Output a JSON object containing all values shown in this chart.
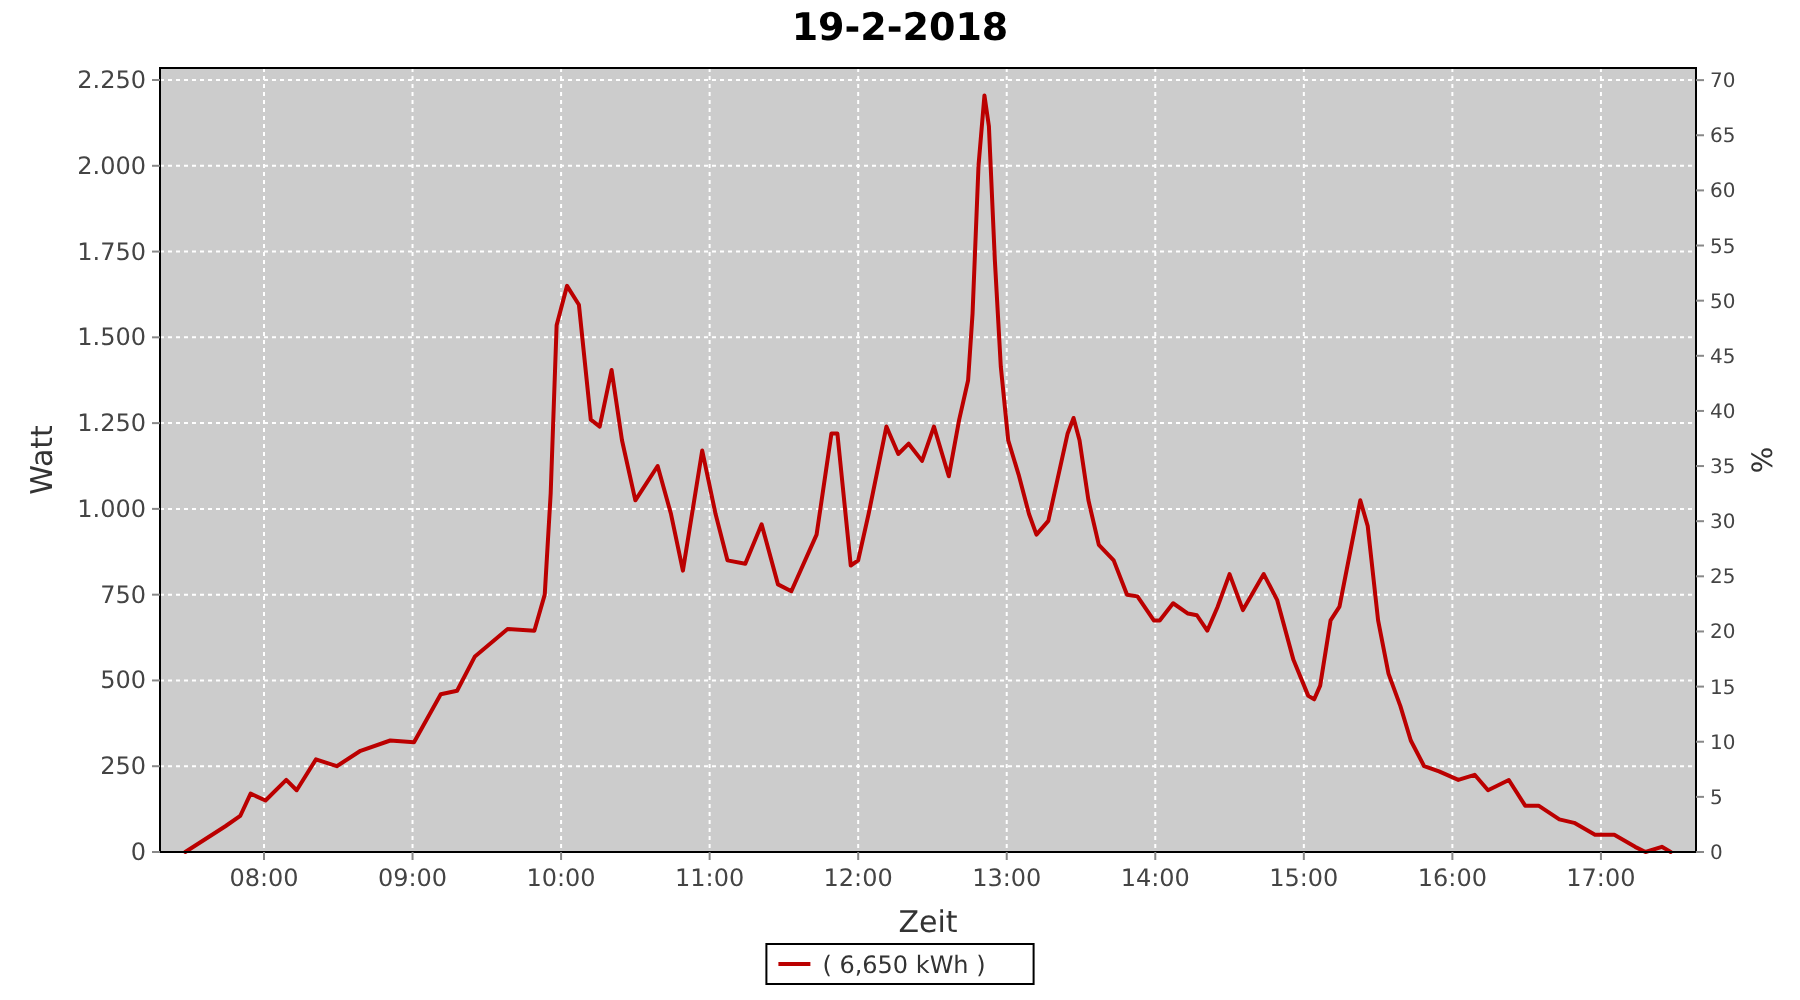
{
  "chart_data": {
    "type": "line",
    "title": "19-2-2018",
    "xlabel": "Zeit",
    "ylabel": "Watt",
    "y2label": "%",
    "x": [
      7.47,
      7.74,
      7.84,
      7.91,
      8.01,
      8.15,
      8.22,
      8.35,
      8.49,
      8.65,
      8.85,
      9.01,
      9.19,
      9.3,
      9.42,
      9.64,
      9.82,
      9.89,
      9.93,
      9.97,
      10.04,
      10.12,
      10.2,
      10.26,
      10.34,
      10.41,
      10.5,
      10.65,
      10.74,
      10.82,
      10.95,
      11.04,
      11.12,
      11.24,
      11.35,
      11.46,
      11.55,
      11.72,
      11.82,
      11.86,
      11.95,
      12.0,
      12.07,
      12.19,
      12.27,
      12.34,
      12.43,
      12.51,
      12.61,
      12.68,
      12.74,
      12.77,
      12.81,
      12.85,
      12.88,
      12.92,
      12.96,
      13.01,
      13.08,
      13.15,
      13.2,
      13.28,
      13.41,
      13.45,
      13.49,
      13.55,
      13.62,
      13.72,
      13.81,
      13.88,
      13.99,
      14.03,
      14.12,
      14.22,
      14.28,
      14.35,
      14.42,
      14.5,
      14.59,
      14.73,
      14.82,
      14.93,
      15.03,
      15.07,
      15.11,
      15.18,
      15.24,
      15.31,
      15.38,
      15.43,
      15.5,
      15.57,
      15.65,
      15.72,
      15.81,
      15.91,
      16.04,
      16.15,
      16.24,
      16.38,
      16.49,
      16.58,
      16.72,
      16.82,
      16.96,
      17.09,
      17.23,
      17.3,
      17.41,
      17.47
    ],
    "series": [
      {
        "name": "( 6,650 kWh )",
        "color": "#bb0000",
        "values": [
          0,
          75,
          105,
          170,
          150,
          210,
          180,
          270,
          250,
          295,
          325,
          320,
          460,
          470,
          570,
          650,
          645,
          750,
          1045,
          1535,
          1650,
          1595,
          1260,
          1240,
          1405,
          1200,
          1025,
          1125,
          985,
          820,
          1170,
          985,
          850,
          840,
          955,
          780,
          760,
          925,
          1220,
          1220,
          835,
          850,
          985,
          1240,
          1160,
          1190,
          1140,
          1240,
          1095,
          1260,
          1375,
          1570,
          2000,
          2205,
          2115,
          1725,
          1415,
          1200,
          1100,
          985,
          925,
          965,
          1220,
          1265,
          1200,
          1025,
          895,
          850,
          750,
          745,
          675,
          675,
          725,
          695,
          690,
          645,
          715,
          810,
          705,
          810,
          735,
          560,
          455,
          445,
          485,
          675,
          715,
          870,
          1025,
          950,
          675,
          520,
          425,
          325,
          250,
          235,
          210,
          225,
          180,
          210,
          135,
          135,
          95,
          85,
          50,
          50,
          15,
          0,
          15,
          0
        ]
      }
    ],
    "xlim": [
      7.3,
      17.64
    ],
    "xticks": [
      {
        "value": 8,
        "label": "08:00"
      },
      {
        "value": 9,
        "label": "09:00"
      },
      {
        "value": 10,
        "label": "10:00"
      },
      {
        "value": 11,
        "label": "11:00"
      },
      {
        "value": 12,
        "label": "12:00"
      },
      {
        "value": 13,
        "label": "13:00"
      },
      {
        "value": 14,
        "label": "14:00"
      },
      {
        "value": 15,
        "label": "15:00"
      },
      {
        "value": 16,
        "label": "16:00"
      },
      {
        "value": 17,
        "label": "17:00"
      }
    ],
    "ylim": [
      0,
      2285
    ],
    "yticks": [
      0,
      {
        "value": 250,
        "label": "250"
      },
      {
        "value": 500,
        "label": "500"
      },
      {
        "value": 750,
        "label": "750"
      },
      {
        "value": 1000,
        "label": "1.000"
      },
      {
        "value": 1250,
        "label": "1.250"
      },
      {
        "value": 1500,
        "label": "1.500"
      },
      {
        "value": 1750,
        "label": "1.750"
      },
      {
        "value": 2000,
        "label": "2.000"
      },
      {
        "value": 2250,
        "label": "2.250"
      }
    ],
    "y2lim": [
      0,
      71.1
    ],
    "y2ticks": [
      0,
      5,
      10,
      15,
      20,
      25,
      30,
      35,
      40,
      45,
      50,
      55,
      60,
      65,
      70
    ],
    "grid": true,
    "legend": "bottom",
    "marker": "none",
    "line_style": "solid"
  }
}
